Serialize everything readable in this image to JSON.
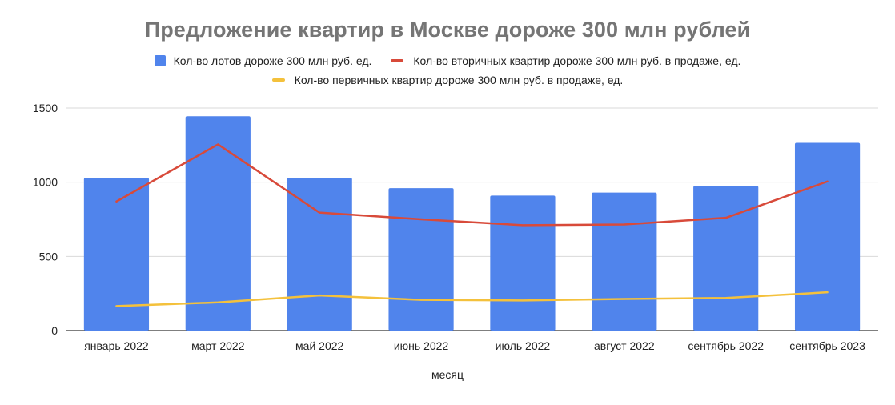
{
  "chart_data": {
    "type": "bar",
    "title": "Предложение квартир в Москве дороже 300 млн рублей",
    "xlabel": "месяц",
    "ylabel": "",
    "categories": [
      "январь 2022",
      "март 2022",
      "май 2022",
      "июнь 2022",
      "июль 2022",
      "август 2022",
      "сентябрь 2022",
      "сентябрь 2023"
    ],
    "ylim": [
      0,
      1500
    ],
    "yticks": [
      0,
      500,
      1000,
      1500
    ],
    "grid": true,
    "legend_position": "top",
    "series": [
      {
        "name": "Кол-во лотов дороже 300 млн руб. ед.",
        "type": "bar",
        "color": "#5084ec",
        "values": [
          1030,
          1445,
          1030,
          960,
          910,
          930,
          975,
          1265
        ]
      },
      {
        "name": "Кол-во вторичных квартир дороже 300 млн руб. в продаже, ед.",
        "type": "line",
        "color": "#d84a3a",
        "values": [
          870,
          1255,
          795,
          750,
          710,
          715,
          760,
          1005
        ]
      },
      {
        "name": "Кол-во первичных квартир дороже 300 млн руб. в продаже, ед.",
        "type": "line",
        "color": "#f4c13c",
        "values": [
          165,
          190,
          237,
          207,
          203,
          213,
          220,
          258
        ]
      }
    ]
  }
}
